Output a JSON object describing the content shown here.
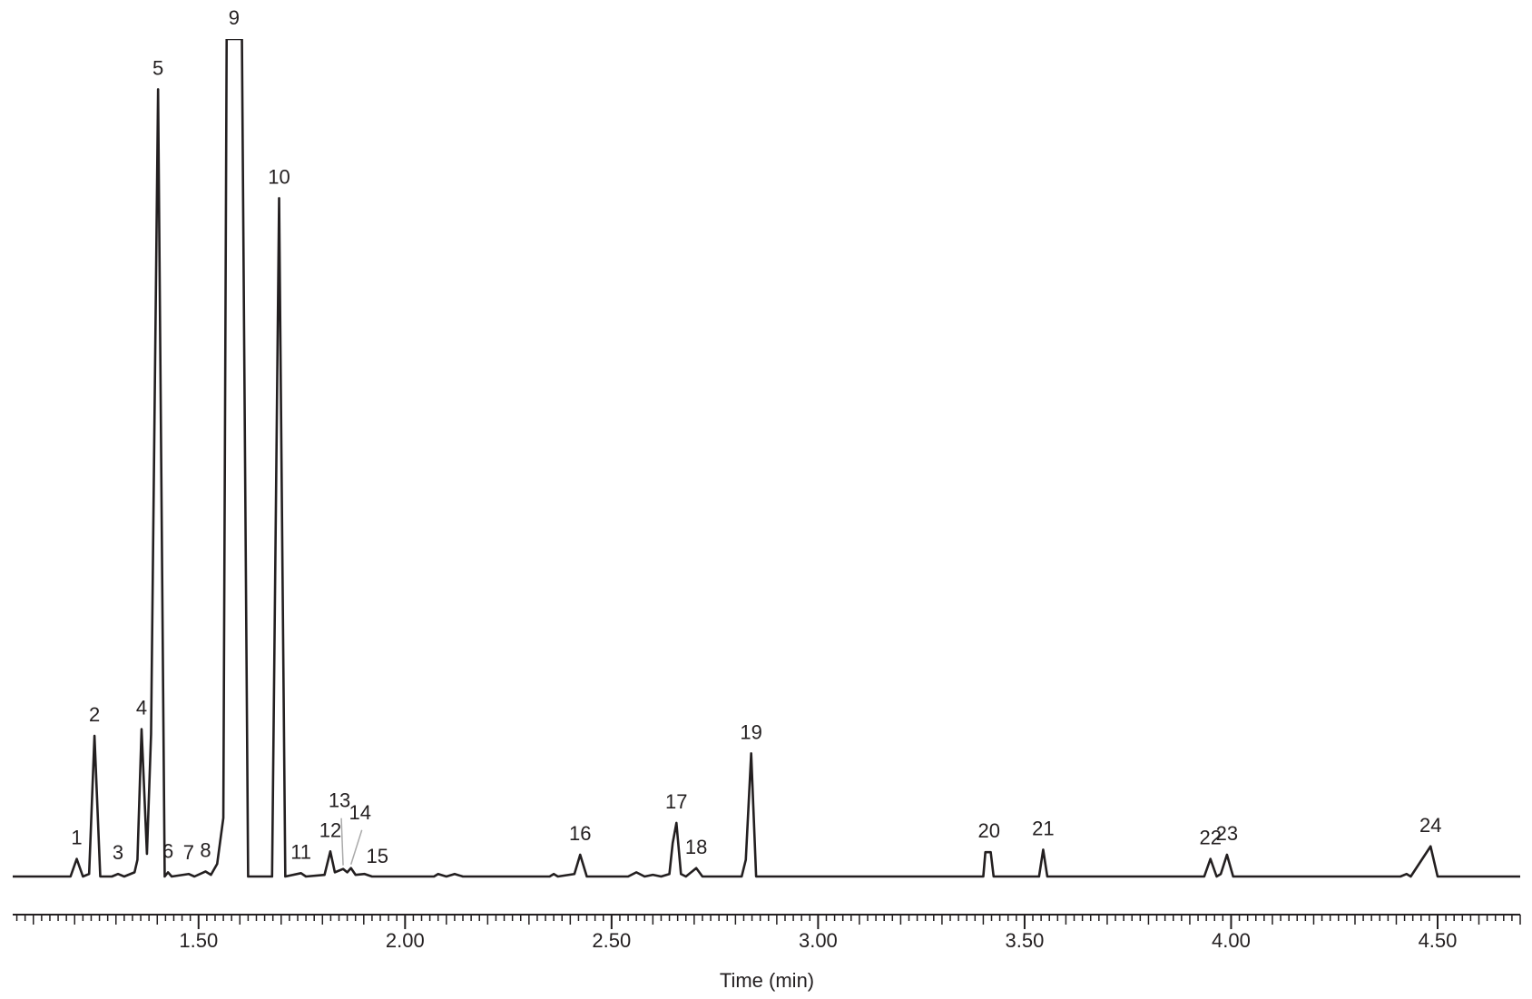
{
  "chart_data": {
    "type": "line",
    "xlabel": "Time (min)",
    "xlim": [
      1.05,
      4.7
    ],
    "ylim": [
      0,
      100
    ],
    "xticks": [
      {
        "value": 1.5,
        "label": "1.50"
      },
      {
        "value": 2.0,
        "label": "2.00"
      },
      {
        "value": 2.5,
        "label": "2.50"
      },
      {
        "value": 3.0,
        "label": "3.00"
      },
      {
        "value": 3.5,
        "label": "3.50"
      },
      {
        "value": 4.0,
        "label": "4.00"
      },
      {
        "value": 4.5,
        "label": "4.50"
      }
    ],
    "xminor_interval": 0.02,
    "series": [
      {
        "color": "#231f20",
        "x": [
          1.05,
          1.19,
          1.205,
          1.22,
          1.235,
          1.248,
          1.262,
          1.29,
          1.305,
          1.32,
          1.345,
          1.352,
          1.362,
          1.375,
          1.385,
          1.402,
          1.418,
          1.426,
          1.435,
          1.476,
          1.49,
          1.517,
          1.53,
          1.545,
          1.56,
          1.568,
          1.605,
          1.62,
          1.678,
          1.695,
          1.71,
          1.748,
          1.76,
          1.805,
          1.819,
          1.83,
          1.85,
          1.86,
          1.869,
          1.88,
          1.902,
          1.92,
          2.07,
          2.08,
          2.1,
          2.12,
          2.14,
          2.35,
          2.36,
          2.37,
          2.41,
          2.424,
          2.44,
          2.54,
          2.56,
          2.58,
          2.6,
          2.62,
          2.64,
          2.648,
          2.657,
          2.668,
          2.68,
          2.705,
          2.72,
          2.815,
          2.825,
          2.838,
          2.85,
          3.4,
          3.405,
          3.418,
          3.425,
          3.535,
          3.545,
          3.555,
          3.935,
          3.95,
          3.965,
          3.975,
          3.99,
          4.005,
          4.41,
          4.425,
          4.435,
          4.483,
          4.5,
          4.7
        ],
        "values": [
          0,
          0,
          2.1,
          0,
          0.3,
          16.8,
          0,
          0,
          0.3,
          0,
          0.5,
          2,
          17.6,
          2.7,
          17,
          94,
          0,
          0.5,
          0,
          0.3,
          0,
          0.6,
          0.2,
          1.5,
          7,
          100,
          100,
          0,
          0,
          81,
          0,
          0.4,
          0,
          0.2,
          3.0,
          0.5,
          0.9,
          0.5,
          1.0,
          0.2,
          0.3,
          0,
          0,
          0.3,
          0,
          0.3,
          0,
          0,
          0.3,
          0,
          0.3,
          2.6,
          0,
          0,
          0.5,
          0,
          0.2,
          0,
          0.3,
          4,
          6.4,
          0.3,
          0,
          1.0,
          0,
          0,
          2,
          14.7,
          0,
          0,
          2.9,
          2.9,
          0,
          0,
          3.2,
          0,
          0,
          2.1,
          0,
          0.3,
          2.6,
          0,
          0,
          0.3,
          0,
          3.6,
          0,
          0
        ]
      }
    ],
    "peaks": [
      {
        "label": "1",
        "x": 1.205,
        "y": 2.1
      },
      {
        "label": "2",
        "x": 1.248,
        "y": 16.8
      },
      {
        "label": "3",
        "x": 1.305,
        "y": 0.3
      },
      {
        "label": "4",
        "x": 1.362,
        "y": 17.6
      },
      {
        "label": "5",
        "x": 1.402,
        "y": 94
      },
      {
        "label": "6",
        "x": 1.426,
        "y": 0.5
      },
      {
        "label": "7",
        "x": 1.476,
        "y": 0.3
      },
      {
        "label": "8",
        "x": 1.517,
        "y": 0.6
      },
      {
        "label": "9",
        "x": 1.586,
        "y": 100
      },
      {
        "label": "10",
        "x": 1.695,
        "y": 81
      },
      {
        "label": "11",
        "x": 1.748,
        "y": 0.4
      },
      {
        "label": "12",
        "x": 1.819,
        "y": 3.0
      },
      {
        "label": "13",
        "x": 1.85,
        "y": 0.9
      },
      {
        "label": "14",
        "x": 1.869,
        "y": 1.0
      },
      {
        "label": "15",
        "x": 1.902,
        "y": 0.3
      },
      {
        "label": "16",
        "x": 2.424,
        "y": 2.6
      },
      {
        "label": "17",
        "x": 2.657,
        "y": 6.4
      },
      {
        "label": "18",
        "x": 2.705,
        "y": 1.0
      },
      {
        "label": "19",
        "x": 2.838,
        "y": 14.7
      },
      {
        "label": "20",
        "x": 3.414,
        "y": 2.9
      },
      {
        "label": "21",
        "x": 3.545,
        "y": 3.2
      },
      {
        "label": "22",
        "x": 3.95,
        "y": 2.1
      },
      {
        "label": "23",
        "x": 3.99,
        "y": 2.6
      },
      {
        "label": "24",
        "x": 4.483,
        "y": 3.6
      }
    ]
  }
}
